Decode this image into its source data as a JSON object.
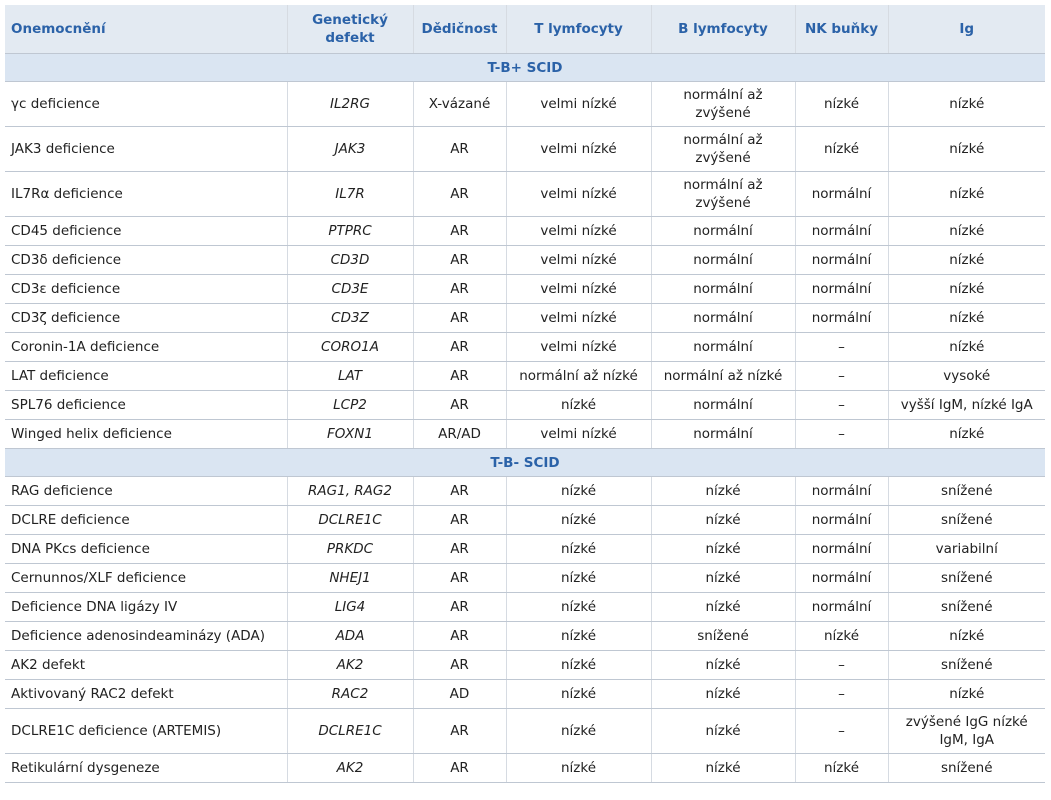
{
  "header": [
    "Onemocnění",
    "Genetický defekt",
    "Dědičnost",
    "T lymfocyty",
    "B lymfocyty",
    "NK buňky",
    "Ig"
  ],
  "sections": [
    {
      "title": "T-B+ SCID",
      "rows": [
        [
          "γc deficience",
          "IL2RG",
          "X-vázané",
          "velmi nízké",
          "normální až zvýšené",
          "nízké",
          "nízké"
        ],
        [
          "JAK3 deficience",
          "JAK3",
          "AR",
          "velmi nízké",
          "normální až zvýšené",
          "nízké",
          "nízké"
        ],
        [
          "IL7Rα deficience",
          "IL7R",
          "AR",
          "velmi nízké",
          "normální až zvýšené",
          "normální",
          "nízké"
        ],
        [
          "CD45 deficience",
          "PTPRC",
          "AR",
          "velmi nízké",
          "normální",
          "normální",
          "nízké"
        ],
        [
          "CD3δ deficience",
          "CD3D",
          "AR",
          "velmi nízké",
          "normální",
          "normální",
          "nízké"
        ],
        [
          "CD3ε deficience",
          "CD3E",
          "AR",
          "velmi nízké",
          "normální",
          "normální",
          "nízké"
        ],
        [
          "CD3ζ deficience",
          "CD3Z",
          "AR",
          "velmi nízké",
          "normální",
          "normální",
          "nízké"
        ],
        [
          "Coronin-1A deficience",
          "CORO1A",
          "AR",
          "velmi nízké",
          "normální",
          "–",
          "nízké"
        ],
        [
          "LAT deficience",
          "LAT",
          "AR",
          "normální až nízké",
          "normální až nízké",
          "–",
          "vysoké"
        ],
        [
          "SPL76 deficience",
          "LCP2",
          "AR",
          "nízké",
          "normální",
          "–",
          "vyšší IgM, nízké IgA"
        ],
        [
          "Winged helix deficience",
          "FOXN1",
          "AR/AD",
          "velmi nízké",
          "normální",
          "–",
          "nízké"
        ]
      ]
    },
    {
      "title": "T-B- SCID",
      "rows": [
        [
          "RAG deficience",
          "RAG1, RAG2",
          "AR",
          "nízké",
          "nízké",
          "normální",
          "snížené"
        ],
        [
          "DCLRE deficience",
          "DCLRE1C",
          "AR",
          "nízké",
          "nízké",
          "normální",
          "snížené"
        ],
        [
          "DNA PKcs deficience",
          "PRKDC",
          "AR",
          "nízké",
          "nízké",
          "normální",
          "variabilní"
        ],
        [
          "Cernunnos/XLF deficience",
          "NHEJ1",
          "AR",
          "nízké",
          "nízké",
          "normální",
          "snížené"
        ],
        [
          "Deficience DNA ligázy IV",
          "LIG4",
          "AR",
          "nízké",
          "nízké",
          "normální",
          "snížené"
        ],
        [
          "Deficience adenosindeaminázy (ADA)",
          "ADA",
          "AR",
          "nízké",
          "snížené",
          "nízké",
          "nízké"
        ],
        [
          "AK2 defekt",
          "AK2",
          "AR",
          "nízké",
          "nízké",
          "–",
          "snížené"
        ],
        [
          "Aktivovaný RAC2 defekt",
          "RAC2",
          "AD",
          "nízké",
          "nízké",
          "–",
          "nízké"
        ],
        [
          "DCLRE1C deficience (ARTEMIS)",
          "DCLRE1C",
          "AR",
          "nízké",
          "nízké",
          "–",
          "zvýšené IgG nízké IgM, IgA"
        ],
        [
          "Retikulární dysgeneze",
          "AK2",
          "AR",
          "nízké",
          "nízké",
          "nízké",
          "snížené"
        ]
      ]
    }
  ]
}
